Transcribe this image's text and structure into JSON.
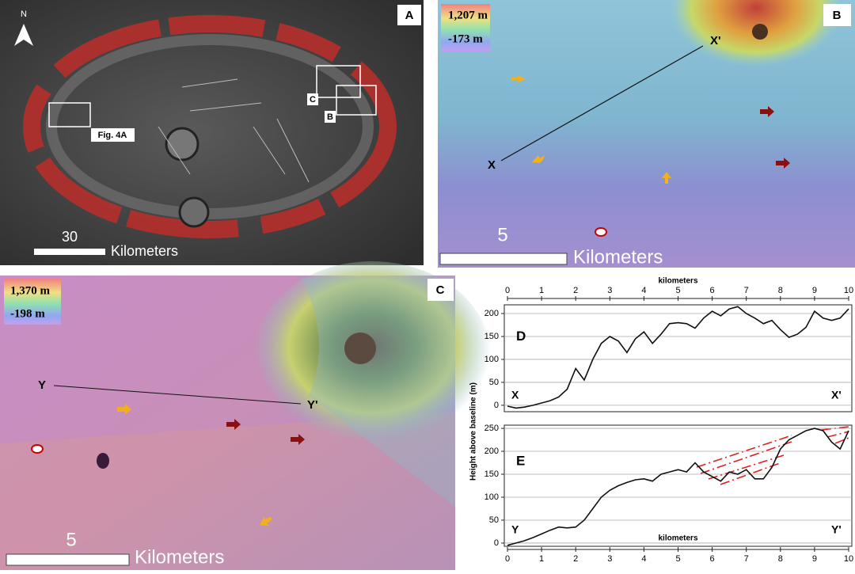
{
  "panels": {
    "A": {
      "label": "A",
      "north": "N",
      "inset": "Fig. 4A",
      "box_c": "C",
      "box_b": "B",
      "scale": "30",
      "unit": "Kilometers"
    },
    "B": {
      "label": "B",
      "max": "1,207 m",
      "min": "-173 m",
      "end": "X'",
      "start": "X",
      "scale": "5",
      "unit": "Kilometers"
    },
    "C": {
      "label": "C",
      "max": "1,370 m",
      "min": "-198 m",
      "start": "Y",
      "end": "Y'",
      "scale": "5",
      "unit": "Kilometers"
    }
  },
  "shared_ylabel": "Height above baseline (m)",
  "chart_data": [
    {
      "type": "line",
      "panel_label": "D",
      "start_label": "X",
      "end_label": "X'",
      "xlabel": "kilometers",
      "color": "#111111",
      "x": [
        0,
        0.25,
        0.5,
        0.75,
        1,
        1.25,
        1.5,
        1.75,
        2,
        2.25,
        2.5,
        2.75,
        3,
        3.25,
        3.5,
        3.75,
        4,
        4.25,
        4.5,
        4.75,
        5,
        5.25,
        5.5,
        5.75,
        6,
        6.25,
        6.5,
        6.75,
        7,
        7.25,
        7.5,
        7.75,
        8,
        8.25,
        8.5,
        8.75,
        9,
        9.25,
        9.5,
        9.75,
        10
      ],
      "values": [
        -2,
        -6,
        -4,
        0,
        5,
        10,
        18,
        35,
        80,
        55,
        100,
        135,
        150,
        140,
        115,
        145,
        160,
        135,
        155,
        178,
        180,
        178,
        168,
        190,
        205,
        195,
        210,
        215,
        200,
        190,
        178,
        185,
        165,
        148,
        155,
        170,
        205,
        190,
        185,
        190,
        210
      ],
      "xlim": [
        0,
        10
      ],
      "xticks": [
        0,
        1,
        2,
        3,
        4,
        5,
        6,
        7,
        8,
        9,
        10
      ],
      "ylim": [
        -14,
        219
      ],
      "yticks": [
        0,
        50,
        100,
        150,
        200
      ],
      "grid": true
    },
    {
      "type": "line",
      "panel_label": "E",
      "start_label": "Y",
      "end_label": "Y'",
      "xlabel": "kilometers",
      "color": "#111111",
      "x": [
        0,
        0.25,
        0.5,
        0.75,
        1,
        1.25,
        1.5,
        1.75,
        2,
        2.25,
        2.5,
        2.75,
        3,
        3.25,
        3.5,
        3.75,
        4,
        4.25,
        4.5,
        4.75,
        5,
        5.25,
        5.5,
        5.75,
        6,
        6.25,
        6.5,
        6.75,
        7,
        7.25,
        7.5,
        7.75,
        8,
        8.25,
        8.5,
        8.75,
        9,
        9.25,
        9.5,
        9.75,
        10
      ],
      "values": [
        -5,
        0,
        5,
        12,
        20,
        28,
        35,
        33,
        35,
        50,
        75,
        100,
        115,
        125,
        132,
        138,
        140,
        135,
        150,
        155,
        160,
        155,
        175,
        155,
        145,
        135,
        155,
        150,
        160,
        140,
        140,
        165,
        205,
        225,
        235,
        245,
        250,
        245,
        220,
        205,
        245
      ],
      "xlim": [
        0,
        10
      ],
      "xticks": [
        0,
        1,
        2,
        3,
        4,
        5,
        6,
        7,
        8,
        9,
        10
      ],
      "ylim": [
        -7,
        257
      ],
      "yticks": [
        0,
        50,
        100,
        150,
        200,
        250
      ],
      "grid": true
    }
  ]
}
